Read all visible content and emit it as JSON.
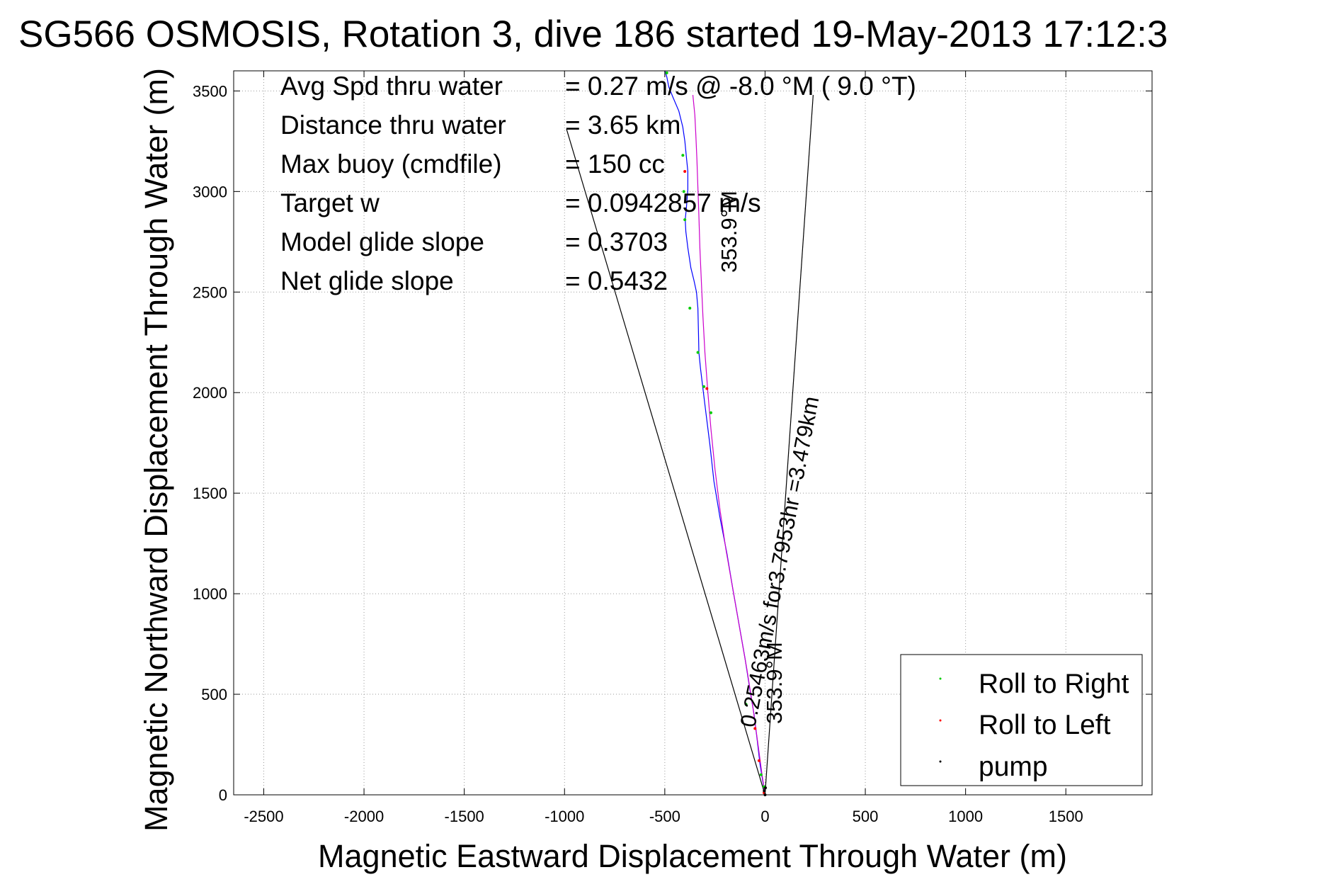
{
  "chart_data": {
    "type": "line",
    "title": "SG566 OSMOSIS, Rotation 3, dive 186 started 19-May-2013 17:12:3",
    "xlabel": "Magnetic Eastward Displacement Through Water (m)",
    "ylabel": "Magnetic Northward Displacement Through Water (m)",
    "xlim": [
      -2650,
      1930
    ],
    "ylim": [
      0,
      3600
    ],
    "xticks": [
      -2500,
      -2000,
      -1500,
      -1000,
      -500,
      0,
      500,
      1000,
      1500
    ],
    "yticks": [
      0,
      500,
      1000,
      1500,
      2000,
      2500,
      3000,
      3500
    ],
    "grid": true,
    "legend_position": "bottom-right",
    "legend": [
      {
        "label": "Roll to Right",
        "color": "#00cc00"
      },
      {
        "label": "Roll to Left",
        "color": "#ff0000"
      },
      {
        "label": "pump",
        "color": "#000000"
      }
    ],
    "info_rows": [
      {
        "label": "Avg Spd thru water",
        "value": "=  0.27 m/s @  -8.0 °M (  9.0 °T)"
      },
      {
        "label": "Distance thru water",
        "value": "=  3.65 km"
      },
      {
        "label": "Max buoy (cmdfile)",
        "value": "= 150 cc"
      },
      {
        "label": "Target w",
        "value": "= 0.0942857 m/s"
      },
      {
        "label": "Model glide slope",
        "value": "= 0.3703"
      },
      {
        "label": "Net glide slope",
        "value": "= 0.5432"
      }
    ],
    "annotations": {
      "heading_top": "353.9°M",
      "track_summary": "0.25463m/s for3.7953hr =3.479km",
      "heading_bottom": "353.9°M"
    },
    "series": [
      {
        "role": "track-blue",
        "color": "#0000ff",
        "x": [
          0,
          -10,
          -25,
          -40,
          -55,
          -75,
          -100,
          -130,
          -160,
          -190,
          -225,
          -255,
          -275,
          -295,
          -310,
          -322,
          -330,
          -332,
          -335,
          -342,
          -355,
          -370,
          -385,
          -395,
          -398,
          -392,
          -385,
          -385,
          -392,
          -400,
          -410,
          -430,
          -460,
          -480,
          -490,
          -500
        ],
        "y": [
          0,
          60,
          150,
          280,
          400,
          520,
          680,
          850,
          1020,
          1200,
          1380,
          1560,
          1740,
          1900,
          2020,
          2120,
          2200,
          2300,
          2420,
          2500,
          2560,
          2620,
          2720,
          2800,
          2860,
          2920,
          3010,
          3100,
          3170,
          3250,
          3320,
          3400,
          3470,
          3520,
          3570,
          3600
        ]
      },
      {
        "role": "track-magenta",
        "color": "#cc00cc",
        "x": [
          0,
          -15,
          -35,
          -60,
          -90,
          -125,
          -160,
          -195,
          -225,
          -250,
          -270,
          -285,
          -300,
          -310,
          -318,
          -325,
          -330,
          -335,
          -340,
          -345,
          -350,
          -360
        ],
        "y": [
          0,
          100,
          250,
          430,
          620,
          820,
          1020,
          1220,
          1420,
          1620,
          1820,
          2000,
          2200,
          2380,
          2560,
          2720,
          2880,
          3020,
          3160,
          3280,
          3380,
          3480
        ]
      },
      {
        "role": "glide-line-left",
        "color": "#000000",
        "x": [
          0,
          -990
        ],
        "y": [
          0,
          3310
        ]
      },
      {
        "role": "glide-line-right",
        "color": "#000000",
        "x": [
          0,
          240
        ],
        "y": [
          0,
          3480
        ]
      }
    ],
    "markers_green": {
      "x": [
        -5,
        -20,
        -95,
        -270,
        -305,
        -335,
        -375,
        -400,
        -405,
        -410,
        -490
      ],
      "y": [
        40,
        100,
        450,
        1900,
        2030,
        2200,
        2420,
        2860,
        3000,
        3180,
        3590
      ]
    },
    "markers_red": {
      "x": [
        -5,
        -30,
        -50,
        -290,
        -400
      ],
      "y": [
        10,
        170,
        330,
        2020,
        3100
      ]
    },
    "markers_black": {
      "x": [
        0,
        -4,
        2
      ],
      "y": [
        0,
        20,
        35
      ]
    }
  }
}
